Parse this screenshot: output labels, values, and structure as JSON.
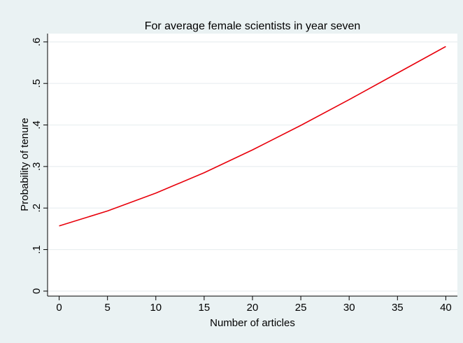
{
  "chart_data": {
    "type": "line",
    "title": "For average female scientists in year seven",
    "xlabel": "Number of articles",
    "ylabel": "Probability of tenure",
    "xlim": [
      -1.2,
      41.2
    ],
    "ylim": [
      -0.012,
      0.62
    ],
    "x_ticks": [
      0,
      5,
      10,
      15,
      20,
      25,
      30,
      35,
      40
    ],
    "x_tick_labels": [
      "0",
      "5",
      "10",
      "15",
      "20",
      "25",
      "30",
      "35",
      "40"
    ],
    "y_ticks": [
      0,
      0.1,
      0.2,
      0.3,
      0.4,
      0.5,
      0.6
    ],
    "y_tick_labels": [
      "0",
      ".1",
      ".2",
      ".3",
      ".4",
      ".5",
      ".6"
    ],
    "grid": true,
    "legend": "none",
    "series": [
      {
        "color": "#e8000b",
        "x": [
          0,
          5,
          10,
          15,
          20,
          25,
          30,
          35,
          40
        ],
        "y": [
          0.157,
          0.193,
          0.236,
          0.285,
          0.34,
          0.399,
          0.461,
          0.525,
          0.589
        ]
      }
    ]
  },
  "colors": {
    "background": "#eaf2f3",
    "plot_area": "#ffffff",
    "grid": "#e8eef0",
    "line": "#e8000b"
  }
}
